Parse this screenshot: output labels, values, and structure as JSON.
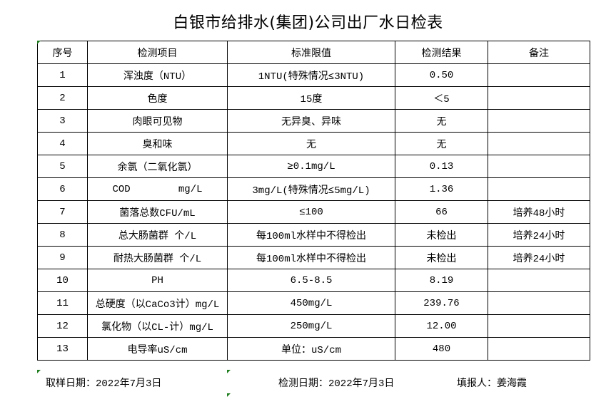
{
  "title": "白银市给排水(集团)公司出厂水日检表",
  "columns": [
    "序号",
    "检测项目",
    "标准限值",
    "检测结果",
    "备注"
  ],
  "rows": [
    [
      "1",
      "浑浊度（NTU）",
      "1NTU(特殊情况≤3NTU)",
      "0.50",
      ""
    ],
    [
      "2",
      "色度",
      "15度",
      "＜5",
      ""
    ],
    [
      "3",
      "肉眼可见物",
      "无异臭、异味",
      "无",
      ""
    ],
    [
      "4",
      "臭和味",
      "无",
      "无",
      ""
    ],
    [
      "5",
      "余氯（二氧化氯）",
      "≥0.1mg/L",
      "0.13",
      ""
    ],
    [
      "6",
      "COD        mg/L",
      "3mg/L(特殊情况≤5mg/L)",
      "1.36",
      ""
    ],
    [
      "7",
      "菌落总数CFU/mL",
      "≤100",
      "66",
      "培养48小时"
    ],
    [
      "8",
      "总大肠菌群 个/L",
      "每100ml水样中不得检出",
      "未检出",
      "培养24小时"
    ],
    [
      "9",
      "耐热大肠菌群 个/L",
      "每100ml水样中不得检出",
      "未检出",
      "培养24小时"
    ],
    [
      "10",
      "PH",
      "6.5-8.5",
      "8.19",
      ""
    ],
    [
      "11",
      "总硬度（以CaCo3计）mg/L",
      "450mg/L",
      "239.76",
      ""
    ],
    [
      "12",
      "氯化物（以CL-计）mg/L",
      "250mg/L",
      "12.00",
      ""
    ],
    [
      "13",
      "电导率uS/cm",
      "单位：uS/cm",
      "480",
      ""
    ]
  ],
  "footer": {
    "sampling_date": "取样日期：2022年7月3日",
    "test_date": "检测日期：2022年7月3日",
    "reporter": "填报人：姜海霞"
  },
  "colors": {
    "comment_marker": "#1e7d1e",
    "border": "#000000"
  }
}
